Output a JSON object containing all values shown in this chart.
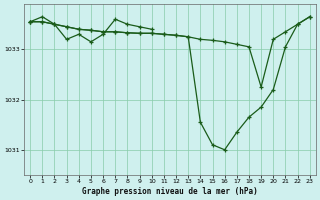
{
  "background_color": "#cff0ee",
  "grid_color": "#88ccaa",
  "line_color": "#1a5c1a",
  "title": "Graphe pression niveau de la mer (hPa)",
  "xlim": [
    -0.5,
    23.5
  ],
  "ylim": [
    1030.5,
    1033.9
  ],
  "yticks": [
    1031,
    1032,
    1033
  ],
  "xticks": [
    0,
    1,
    2,
    3,
    4,
    5,
    6,
    7,
    8,
    9,
    10,
    11,
    12,
    13,
    14,
    15,
    16,
    17,
    18,
    19,
    20,
    21,
    22,
    23
  ],
  "series1_x": [
    0,
    1,
    2,
    3,
    4,
    5,
    6,
    7,
    8,
    9,
    10
  ],
  "series1_y": [
    1033.55,
    1033.65,
    1033.5,
    1033.2,
    1033.3,
    1033.15,
    1033.3,
    1033.6,
    1033.5,
    1033.45,
    1033.4
  ],
  "series2_x": [
    0,
    1,
    2,
    3,
    4,
    5,
    6,
    7,
    8,
    9,
    10,
    11,
    12,
    13,
    14,
    15,
    16,
    17,
    18,
    19,
    20,
    21,
    22,
    23
  ],
  "series2_y": [
    1033.55,
    1033.55,
    1033.5,
    1033.45,
    1033.4,
    1033.38,
    1033.35,
    1033.35,
    1033.33,
    1033.32,
    1033.32,
    1033.3,
    1033.28,
    1033.25,
    1033.2,
    1033.18,
    1033.15,
    1033.1,
    1033.05,
    1032.25,
    1033.2,
    1033.35,
    1033.5,
    1033.65
  ],
  "series3_x": [
    0,
    1,
    2,
    3,
    4,
    5,
    6,
    7,
    8,
    9,
    10,
    11,
    12,
    13,
    14,
    15,
    16,
    17,
    18,
    19,
    20,
    21,
    22,
    23
  ],
  "series3_y": [
    1033.55,
    1033.55,
    1033.5,
    1033.45,
    1033.4,
    1033.38,
    1033.35,
    1033.35,
    1033.33,
    1033.32,
    1033.32,
    1033.3,
    1033.28,
    1033.25,
    1031.55,
    1031.1,
    1031.0,
    1031.35,
    1031.65,
    1031.85,
    1032.2,
    1033.05,
    1033.5,
    1033.65
  ]
}
